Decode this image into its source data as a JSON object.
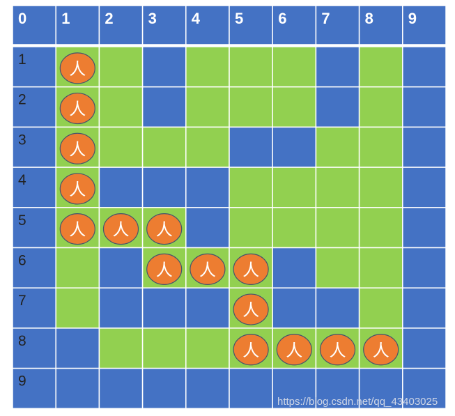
{
  "colors": {
    "wall": "#4472c4",
    "path": "#92d050",
    "person_fill": "#ed7d31",
    "person_stroke": "#45556b",
    "grid_line": "#ffffff",
    "header_text": "#ffffff",
    "row_text": "#222222"
  },
  "column_labels": [
    "0",
    "1",
    "2",
    "3",
    "4",
    "5",
    "6",
    "7",
    "8",
    "9"
  ],
  "row_labels": [
    "1",
    "2",
    "3",
    "4",
    "5",
    "6",
    "7",
    "8",
    "9"
  ],
  "maze": [
    "WGGWGGGWGW",
    "WGGWGGGWGW",
    "WGGGGWWGGW",
    "WGWWWGGGGW",
    "WGGGWGGGGW",
    "WGWGGGWGGW",
    "WGWWWGWWGW",
    "WWGGGGGGGW",
    "WWWWWWWWWW"
  ],
  "person_label": "人",
  "person_cells": [
    {
      "row": 1,
      "col": 1
    },
    {
      "row": 2,
      "col": 1
    },
    {
      "row": 3,
      "col": 1
    },
    {
      "row": 4,
      "col": 1
    },
    {
      "row": 5,
      "col": 1
    },
    {
      "row": 5,
      "col": 2
    },
    {
      "row": 5,
      "col": 3
    },
    {
      "row": 6,
      "col": 3
    },
    {
      "row": 6,
      "col": 4
    },
    {
      "row": 6,
      "col": 5
    },
    {
      "row": 7,
      "col": 5
    },
    {
      "row": 8,
      "col": 5
    },
    {
      "row": 8,
      "col": 6
    },
    {
      "row": 8,
      "col": 7
    },
    {
      "row": 8,
      "col": 8
    }
  ],
  "watermark": "https://blog.csdn.net/qq_43403025"
}
